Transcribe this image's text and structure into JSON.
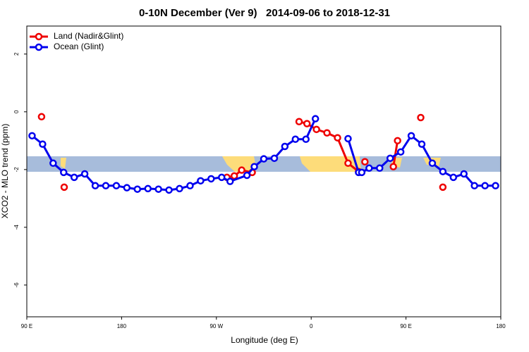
{
  "chart_data": {
    "type": "line",
    "title": "0-10N December (Ver 9)   2014-09-06 to 2018-12-31",
    "x_label": "Longitude (deg E)",
    "y_label": "XCO2 - MLO trend (ppm)",
    "xlim": [
      90,
      540
    ],
    "ylim": [
      -7.1,
      2.97
    ],
    "xticks": [
      {
        "value": 90,
        "label": "90 E"
      },
      180,
      {
        "value": 270,
        "label": "90 W"
      },
      {
        "value": 360,
        "label": "0"
      },
      {
        "value": 450,
        "label": "90 E"
      },
      {
        "value": 540,
        "label": "180"
      }
    ],
    "yticks": [
      2,
      0,
      -2,
      -4,
      -6
    ],
    "legend": "top-left",
    "series": [
      {
        "name": "Land (Nadir&Glint)",
        "color": "#ee0000",
        "x": [
          104,
          null,
          125.5,
          null,
          280,
          287,
          294,
          304,
          null,
          348.5,
          356,
          365,
          375,
          385,
          395,
          405,
          null,
          411,
          null,
          438,
          442,
          null,
          464,
          null,
          485
        ],
        "values": [
          -0.17,
          null,
          -2.61,
          null,
          -2.27,
          -2.22,
          -2.02,
          -2.1,
          null,
          -0.34,
          -0.41,
          -0.61,
          -0.73,
          -0.9,
          -1.78,
          -2.07,
          null,
          -1.73,
          null,
          -1.9,
          -1.0,
          null,
          -0.2,
          null,
          -2.61
        ]
      },
      {
        "name": "Ocean (Glint)",
        "color": "#0000ee",
        "x": [
          95,
          105,
          115,
          125,
          135,
          145,
          155,
          165,
          175,
          185,
          195,
          205,
          215,
          225,
          235,
          245,
          255,
          265,
          275,
          283,
          299,
          306,
          315,
          325,
          335,
          345,
          355,
          364,
          null,
          395,
          405,
          408,
          415,
          425,
          435,
          445,
          455,
          465,
          475,
          485,
          495,
          505,
          515,
          525,
          535
        ],
        "values": [
          -0.83,
          -1.12,
          -1.78,
          -2.1,
          -2.27,
          -2.15,
          -2.56,
          -2.56,
          -2.56,
          -2.63,
          -2.68,
          -2.66,
          -2.68,
          -2.71,
          -2.66,
          -2.56,
          -2.39,
          -2.32,
          -2.27,
          -2.41,
          -2.2,
          -1.9,
          -1.63,
          -1.61,
          -1.2,
          -0.95,
          -0.95,
          -0.24,
          null,
          -0.93,
          -2.1,
          -2.1,
          -1.95,
          -1.95,
          -1.61,
          -1.39,
          -0.83,
          -1.12,
          -1.78,
          -2.07,
          -2.27,
          -2.15,
          -2.56,
          -2.56,
          -2.56
        ]
      }
    ]
  }
}
